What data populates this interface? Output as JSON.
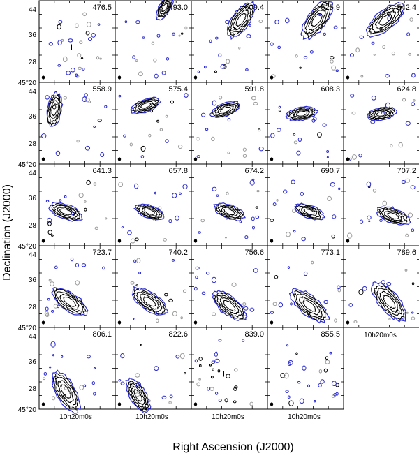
{
  "chart_data": {
    "type": "contour-channel-map",
    "xlabel": "Right Ascension (J2000)",
    "ylabel": "Declination (J2000)",
    "y_ticks": [
      "44",
      "36",
      "28",
      "45°20"
    ],
    "x_tick": "10h20m0s",
    "panels": [
      {
        "velocity": "476.5",
        "ra": 0.0,
        "dec": 0.0,
        "angle": 0,
        "size": 0.0
      },
      {
        "velocity": "493.0",
        "ra": 0.15,
        "dec": 0.45,
        "angle": -60,
        "size": 0.35
      },
      {
        "velocity": "509.4",
        "ra": 0.15,
        "dec": 0.3,
        "angle": -55,
        "size": 0.55
      },
      {
        "velocity": "525.9",
        "ra": 0.15,
        "dec": 0.3,
        "angle": -55,
        "size": 0.6
      },
      {
        "velocity": "542.4",
        "ra": 0.05,
        "dec": 0.3,
        "angle": -40,
        "size": 0.6
      },
      {
        "velocity": "558.9",
        "ra": -0.3,
        "dec": 0.2,
        "angle": -80,
        "size": 0.45
      },
      {
        "velocity": "575.4",
        "ra": -0.1,
        "dec": 0.25,
        "angle": -20,
        "size": 0.4
      },
      {
        "velocity": "591.8",
        "ra": -0.05,
        "dec": 0.2,
        "angle": -20,
        "size": 0.4
      },
      {
        "velocity": "608.3",
        "ra": -0.05,
        "dec": 0.15,
        "angle": -10,
        "size": 0.4
      },
      {
        "velocity": "624.8",
        "ra": 0.0,
        "dec": 0.15,
        "angle": -10,
        "size": 0.38
      },
      {
        "velocity": "641.3",
        "ra": -0.15,
        "dec": -0.05,
        "angle": 20,
        "size": 0.45
      },
      {
        "velocity": "657.8",
        "ra": -0.05,
        "dec": -0.05,
        "angle": 20,
        "size": 0.4
      },
      {
        "velocity": "674.2",
        "ra": 0.0,
        "dec": -0.05,
        "angle": 20,
        "size": 0.42
      },
      {
        "velocity": "690.7",
        "ra": 0.05,
        "dec": -0.05,
        "angle": 20,
        "size": 0.4
      },
      {
        "velocity": "707.2",
        "ra": 0.15,
        "dec": -0.1,
        "angle": 20,
        "size": 0.45
      },
      {
        "velocity": "723.7",
        "ra": -0.1,
        "dec": -0.15,
        "angle": 35,
        "size": 0.55
      },
      {
        "velocity": "740.2",
        "ra": -0.05,
        "dec": -0.15,
        "angle": 35,
        "size": 0.55
      },
      {
        "velocity": "756.6",
        "ra": 0.0,
        "dec": -0.2,
        "angle": 40,
        "size": 0.55
      },
      {
        "velocity": "773.1",
        "ra": 0.05,
        "dec": -0.2,
        "angle": 40,
        "size": 0.6
      },
      {
        "velocity": "789.6",
        "ra": 0.1,
        "dec": -0.15,
        "angle": 50,
        "size": 0.62
      },
      {
        "velocity": "806.1",
        "ra": -0.15,
        "dec": -0.25,
        "angle": 60,
        "size": 0.6
      },
      {
        "velocity": "822.6",
        "ra": -0.2,
        "dec": -0.3,
        "angle": 60,
        "size": 0.5
      },
      {
        "velocity": "839.0",
        "ra": 0.0,
        "dec": 0.0,
        "angle": 0,
        "size": 0.0
      },
      {
        "velocity": "855.5",
        "ra": 0.0,
        "dec": 0.0,
        "angle": 0,
        "size": 0.0
      }
    ]
  }
}
